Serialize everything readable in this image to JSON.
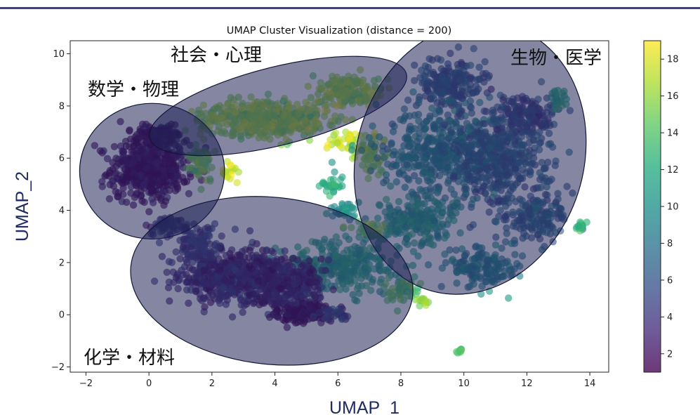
{
  "chart_data": {
    "type": "scatter",
    "title": "UMAP Cluster Visualization (distance = 200)",
    "xlabel": "UMAP_1",
    "ylabel": "UMAP_2",
    "xlim": [
      -2.5,
      14.6
    ],
    "ylim": [
      -2.2,
      10.5
    ],
    "xticks": [
      -2,
      0,
      2,
      4,
      6,
      8,
      10,
      12,
      14
    ],
    "yticks": [
      -2,
      0,
      2,
      4,
      6,
      8,
      10
    ],
    "grid": false,
    "colorbar": {
      "colormap": "viridis",
      "range": [
        1,
        19
      ],
      "ticks": [
        2,
        4,
        6,
        8,
        10,
        12,
        14,
        16,
        18
      ]
    },
    "regions": [
      {
        "label": "数学・物理",
        "cx": 0.1,
        "cy": 5.5,
        "rx": 2.3,
        "ry": 2.6,
        "angle": 0
      },
      {
        "label": "社会・心理",
        "cx": 4.1,
        "cy": 8.0,
        "rx": 4.2,
        "ry": 1.5,
        "angle": 14
      },
      {
        "label": "生物・医学",
        "cx": 10.2,
        "cy": 6.0,
        "rx": 3.6,
        "ry": 5.3,
        "angle": -18
      },
      {
        "label": "化学・材料",
        "cx": 3.9,
        "cy": 1.3,
        "rx": 4.5,
        "ry": 3.2,
        "angle": -6
      }
    ],
    "clusters": [
      {
        "cx": 0.0,
        "cy": 5.6,
        "sx": 1.0,
        "sy": 1.0,
        "n": 520,
        "c": 1.2
      },
      {
        "cx": 0.3,
        "cy": 6.9,
        "sx": 0.6,
        "sy": 0.3,
        "n": 120,
        "c": 1.0
      },
      {
        "cx": 1.6,
        "cy": 5.8,
        "sx": 0.4,
        "sy": 0.6,
        "n": 60,
        "c": 15
      },
      {
        "cx": 2.6,
        "cy": 5.5,
        "sx": 0.3,
        "sy": 0.3,
        "n": 20,
        "c": 18
      },
      {
        "cx": 3.7,
        "cy": 7.5,
        "sx": 1.6,
        "sy": 0.55,
        "n": 520,
        "c": 16
      },
      {
        "cx": 6.3,
        "cy": 8.6,
        "sx": 0.9,
        "sy": 0.5,
        "n": 180,
        "c": 16
      },
      {
        "cx": 6.3,
        "cy": 6.7,
        "sx": 0.4,
        "sy": 0.3,
        "n": 35,
        "c": 17.5
      },
      {
        "cx": 7.0,
        "cy": 6.2,
        "sx": 0.5,
        "sy": 0.7,
        "n": 60,
        "c": 16
      },
      {
        "cx": 9.6,
        "cy": 8.8,
        "sx": 0.9,
        "sy": 0.8,
        "n": 220,
        "c": 6
      },
      {
        "cx": 9.3,
        "cy": 6.2,
        "sx": 1.7,
        "sy": 1.3,
        "n": 450,
        "c": 9
      },
      {
        "cx": 11.3,
        "cy": 6.0,
        "sx": 1.3,
        "sy": 1.6,
        "n": 430,
        "c": 6.5
      },
      {
        "cx": 12.0,
        "cy": 7.7,
        "sx": 0.7,
        "sy": 0.6,
        "n": 130,
        "c": 5
      },
      {
        "cx": 12.3,
        "cy": 3.7,
        "sx": 0.8,
        "sy": 0.8,
        "n": 130,
        "c": 7
      },
      {
        "cx": 8.5,
        "cy": 3.6,
        "sx": 1.0,
        "sy": 0.9,
        "n": 200,
        "c": 11
      },
      {
        "cx": 6.2,
        "cy": 4.0,
        "sx": 0.4,
        "sy": 0.3,
        "n": 35,
        "c": 10
      },
      {
        "cx": 10.6,
        "cy": 1.8,
        "sx": 0.9,
        "sy": 0.6,
        "n": 150,
        "c": 9
      },
      {
        "cx": 13.7,
        "cy": 3.4,
        "sx": 0.2,
        "sy": 0.15,
        "n": 14,
        "c": 13
      },
      {
        "cx": 13.0,
        "cy": 8.3,
        "sx": 0.3,
        "sy": 0.3,
        "n": 25,
        "c": 12
      },
      {
        "cx": 6.0,
        "cy": 1.9,
        "sx": 1.5,
        "sy": 0.8,
        "n": 300,
        "c": 11.5
      },
      {
        "cx": 8.1,
        "cy": 0.9,
        "sx": 0.5,
        "sy": 0.4,
        "n": 50,
        "c": 14
      },
      {
        "cx": 8.7,
        "cy": 0.5,
        "sx": 0.2,
        "sy": 0.2,
        "n": 15,
        "c": 16
      },
      {
        "cx": 7.0,
        "cy": 3.2,
        "sx": 0.4,
        "sy": 0.3,
        "n": 30,
        "c": 15
      },
      {
        "cx": 9.9,
        "cy": -1.4,
        "sx": 0.08,
        "sy": 0.1,
        "n": 8,
        "c": 14
      },
      {
        "cx": 5.8,
        "cy": 5.0,
        "sx": 0.3,
        "sy": 0.3,
        "n": 25,
        "c": 12
      },
      {
        "cx": 2.5,
        "cy": 1.5,
        "sx": 1.4,
        "sy": 0.9,
        "n": 480,
        "c": 3
      },
      {
        "cx": 4.3,
        "cy": 1.2,
        "sx": 1.2,
        "sy": 0.8,
        "n": 330,
        "c": 2.5
      },
      {
        "cx": 4.8,
        "cy": 0.1,
        "sx": 0.7,
        "sy": 0.3,
        "n": 130,
        "c": 1.3
      },
      {
        "cx": 1.6,
        "cy": 2.7,
        "sx": 0.6,
        "sy": 0.5,
        "n": 100,
        "c": 4.5
      },
      {
        "cx": 5.9,
        "cy": 0.0,
        "sx": 0.4,
        "sy": 0.2,
        "n": 30,
        "c": 5
      },
      {
        "cx": 0.6,
        "cy": 3.4,
        "sx": 0.5,
        "sy": 0.3,
        "n": 50,
        "c": 4
      }
    ]
  },
  "colors": {
    "top_rule": "#3f4470",
    "ellipse_fill": "#1f2355",
    "ellipse_stroke": "#121536",
    "axis_title": "#1f2b63"
  }
}
